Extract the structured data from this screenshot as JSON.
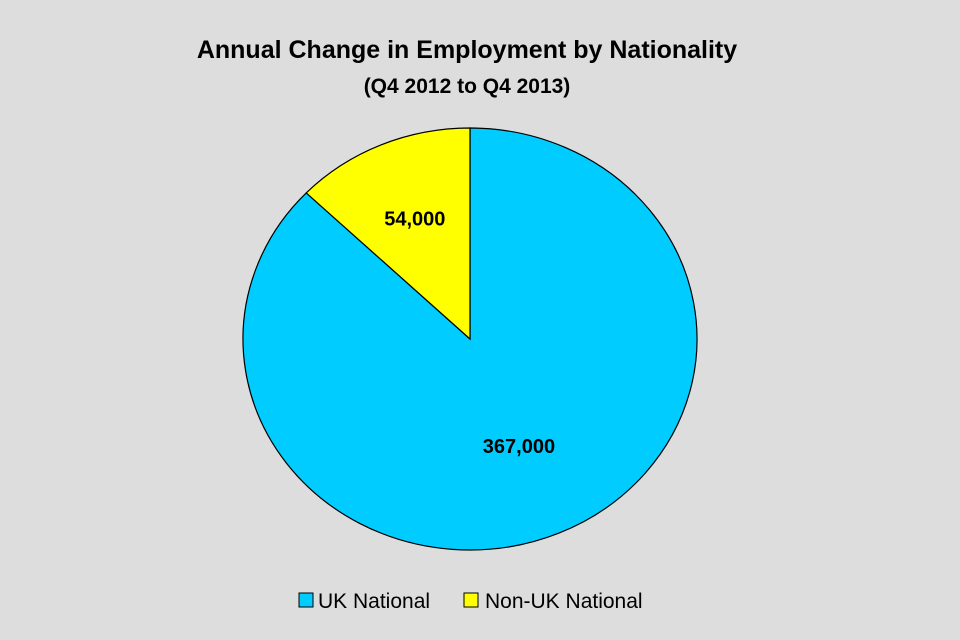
{
  "chart_data": {
    "type": "pie",
    "title": "Annual Change in Employment by Nationality",
    "subtitle": "(Q4 2012 to Q4 2013)",
    "start_angle_deg": 0,
    "direction": "clockwise",
    "slices": [
      {
        "name": "UK National",
        "value": 367000,
        "label": "367,000",
        "color": "#00ccff"
      },
      {
        "name": "Non-UK National",
        "value": 54000,
        "label": "54,000",
        "color": "#ffff00"
      }
    ],
    "legend": {
      "position": "bottom",
      "items": [
        "UK National",
        "Non-UK National"
      ]
    },
    "background_color": "#dddddd",
    "outline_color": "#000000"
  }
}
